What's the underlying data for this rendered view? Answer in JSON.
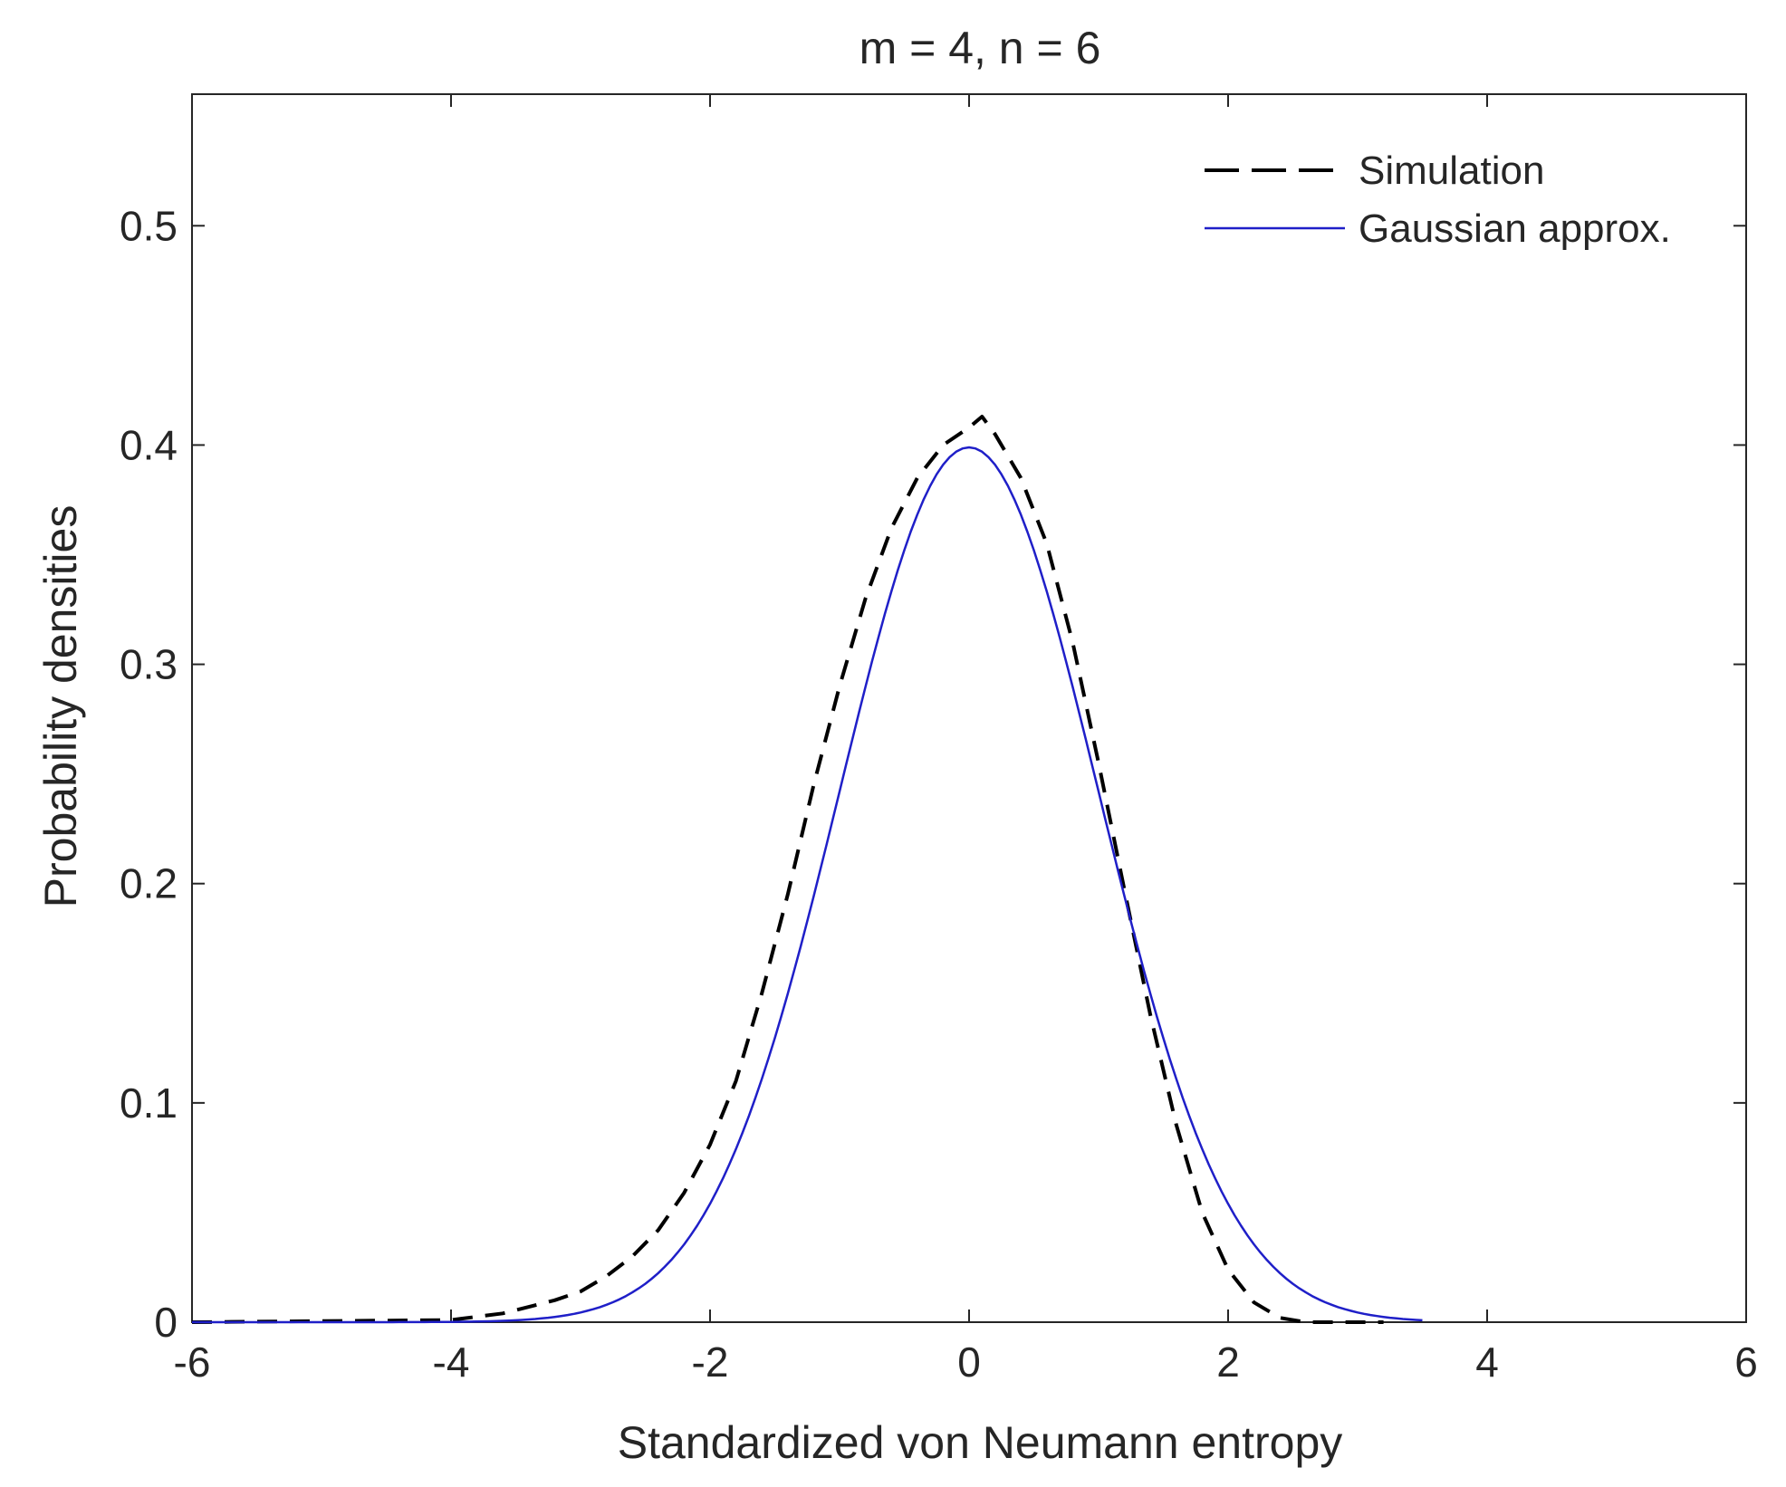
{
  "chart_data": {
    "type": "line",
    "title": "m = 4, n = 6",
    "xlabel": "Standardized von Neumann entropy",
    "ylabel": "Probability densities",
    "xlim": [
      -6,
      6
    ],
    "ylim": [
      0,
      0.56
    ],
    "xticks": [
      -6,
      -4,
      -2,
      0,
      2,
      4,
      6
    ],
    "xtick_labels": [
      "-6",
      "-4",
      "-2",
      "0",
      "2",
      "4",
      "6"
    ],
    "yticks": [
      0,
      0.1,
      0.2,
      0.3,
      0.4,
      0.5
    ],
    "ytick_labels": [
      "0",
      "0.1",
      "0.2",
      "0.3",
      "0.4",
      "0.5"
    ],
    "grid": false,
    "legend_position": "top-right",
    "series": [
      {
        "name": "Simulation",
        "style": "dashed",
        "color": "#000000",
        "x": [
          -6,
          -5,
          -4,
          -3.6,
          -3.2,
          -3.0,
          -2.8,
          -2.6,
          -2.4,
          -2.2,
          -2.0,
          -1.8,
          -1.6,
          -1.4,
          -1.2,
          -1.0,
          -0.8,
          -0.6,
          -0.4,
          -0.2,
          0.0,
          0.1,
          0.2,
          0.4,
          0.6,
          0.8,
          1.0,
          1.2,
          1.4,
          1.6,
          1.8,
          2.0,
          2.2,
          2.4,
          2.6,
          2.8,
          3.0,
          3.2
        ],
        "y": [
          0.0,
          0.0005,
          0.001,
          0.004,
          0.01,
          0.014,
          0.021,
          0.03,
          0.042,
          0.059,
          0.081,
          0.11,
          0.15,
          0.195,
          0.245,
          0.29,
          0.33,
          0.362,
          0.385,
          0.4,
          0.408,
          0.413,
          0.405,
          0.385,
          0.355,
          0.31,
          0.255,
          0.197,
          0.14,
          0.09,
          0.05,
          0.024,
          0.009,
          0.002,
          0.0,
          0.0,
          0.0,
          0.0
        ]
      },
      {
        "name": "Gaussian approx.",
        "style": "solid",
        "color": "#1f1fc8",
        "function": "standard-normal-pdf",
        "x_range": [
          -6,
          3.5
        ]
      }
    ]
  }
}
